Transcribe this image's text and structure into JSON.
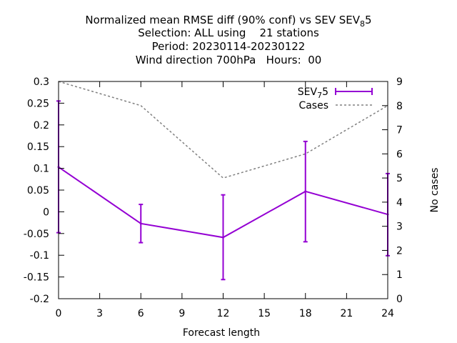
{
  "chart_data": {
    "type": "line",
    "title_lines": [
      "Normalized mean RMSE diff (90% conf) vs SEV",
      "Selection: ALL using    21 stations",
      "Period: 20230114-20230122",
      "Wind direction 700hPa   Hours:  00"
    ],
    "title_ref": {
      "base": "SEV",
      "sub": "8",
      "tail": "5"
    },
    "xlabel": "Forecast length",
    "ylabel": "",
    "y2label": "No cases",
    "xlim": [
      0,
      24
    ],
    "ylim": [
      -0.2,
      0.3
    ],
    "y2lim": [
      0,
      9
    ],
    "xticks": [
      "0",
      "3",
      "6",
      "9",
      "12",
      "15",
      "18",
      "21",
      "24"
    ],
    "yticks": [
      "0.3",
      "0.25",
      "0.2",
      "0.15",
      "0.1",
      "0.05",
      "0",
      "-0.05",
      "-0.1",
      "-0.15",
      "-0.2"
    ],
    "y2ticks": [
      "9",
      "8",
      "7",
      "6",
      "5",
      "4",
      "3",
      "2",
      "1",
      "0"
    ],
    "grid": false,
    "legend_position": "top-right",
    "series": [
      {
        "name": "SEV",
        "name_sub": "7",
        "name_tail": "5",
        "color": "#9400d3",
        "style": "line-errorbars",
        "x": [
          0,
          6,
          12,
          18,
          24
        ],
        "y": [
          0.103,
          -0.027,
          -0.059,
          0.047,
          -0.006
        ],
        "err_low": [
          -0.048,
          -0.071,
          -0.156,
          -0.069,
          -0.101
        ],
        "err_high": [
          0.255,
          0.017,
          0.039,
          0.162,
          0.088
        ]
      },
      {
        "name": "Cases",
        "color": "#808080",
        "style": "dashed",
        "axis": "y2",
        "x": [
          0,
          6,
          12,
          18,
          24
        ],
        "y": [
          9,
          8,
          5,
          6,
          8
        ]
      }
    ]
  }
}
